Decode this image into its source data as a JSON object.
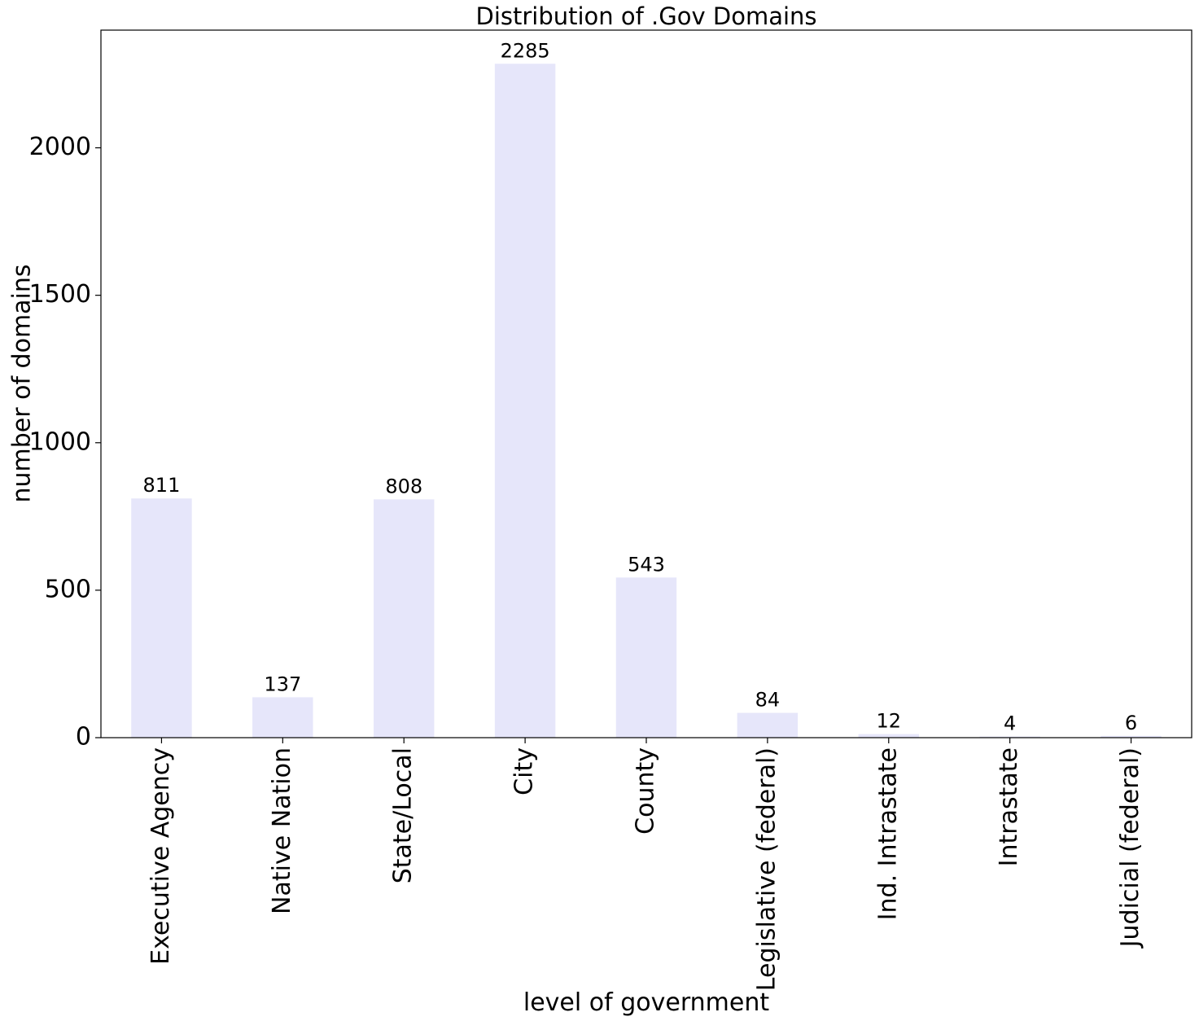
{
  "chart_data": {
    "type": "bar",
    "title": "Distribution of .Gov Domains",
    "xlabel": "level of government",
    "ylabel": "number of domains",
    "categories": [
      "Executive Agency",
      "Native Nation",
      "State/Local",
      "City",
      "County",
      "Legislative (federal)",
      "Ind. Intrastate",
      "Intrastate",
      "Judicial (federal)"
    ],
    "values": [
      811,
      137,
      808,
      2285,
      543,
      84,
      12,
      4,
      6
    ],
    "data_labels": [
      "811",
      "137",
      "808",
      "2285",
      "543",
      "84",
      "12",
      "4",
      "6"
    ],
    "yticks": [
      0,
      500,
      1000,
      1500,
      2000
    ],
    "ytick_labels": [
      "0",
      "500",
      "1000",
      "1500",
      "2000"
    ],
    "ylim": [
      0,
      2399
    ],
    "grid": false,
    "legend": "none",
    "bar_color": "#e6e6fa"
  }
}
